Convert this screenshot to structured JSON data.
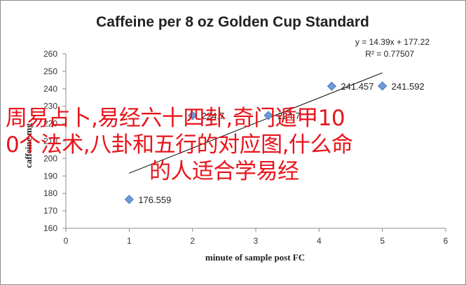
{
  "chart_data": {
    "type": "scatter",
    "title": "Caffeine per 8 oz Golden Cup Standard",
    "xlabel": "minute of sample post FC",
    "ylabel": "caffeine mg",
    "xlim": [
      0,
      6
    ],
    "ylim": [
      160,
      260
    ],
    "x_ticks": [
      "0",
      "1",
      "2",
      "3",
      "4",
      "5",
      "6"
    ],
    "y_ticks": [
      "160",
      "170",
      "180",
      "190",
      "200",
      "210",
      "220",
      "230",
      "240",
      "250",
      "260"
    ],
    "series": [
      {
        "x": [
          1,
          2,
          3.2,
          4.2,
          5
        ],
        "y": [
          176.559,
          224.7,
          224.7,
          241.457,
          241.592
        ],
        "labels": [
          "176.559",
          "224.7",
          "224.7",
          "241.457",
          "241.592"
        ]
      }
    ],
    "trendline": {
      "slope": 14.39,
      "intercept": 177.22,
      "equation": "y = 14.39x + 177.22",
      "r_squared": "R² = 0.77507",
      "x_range": [
        1,
        5
      ]
    },
    "grid": false,
    "legend": "none",
    "colors": {
      "marker": "#6f9ad6",
      "marker_edge": "#3d6db5",
      "trend": "#000000",
      "axis": "#8c8c8c"
    }
  },
  "overlay_text": {
    "line1": "周易占卜,易经六十四卦,奇门遁甲10",
    "line2": "0个法术,八卦和五行的对应图,什么命",
    "line3": "的人适合学易经"
  }
}
